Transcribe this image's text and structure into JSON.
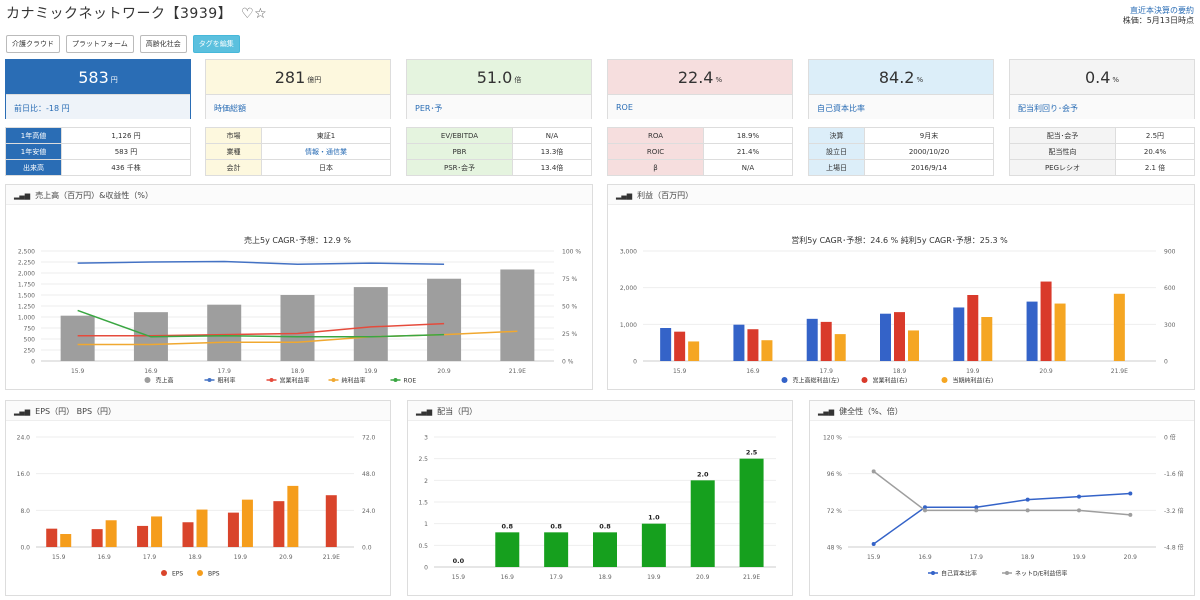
{
  "header": {
    "title": "カナミックネットワーク【3939】",
    "fav_icons": "♡☆",
    "latest_link": "直近本決算の要約",
    "price_time": "株価：5月13日時点"
  },
  "tags": [
    "介護クラウド",
    "プラットフォーム",
    "高齢化社会",
    "タグを編集"
  ],
  "cards": [
    {
      "value": "583",
      "unit": "円",
      "sub": "前日比：-18 円"
    },
    {
      "value": "281",
      "unit": "億円",
      "sub": "時価総額"
    },
    {
      "value": "51.0",
      "unit": "倍",
      "sub": "PER･予"
    },
    {
      "value": "22.4",
      "unit": "%",
      "sub": "ROE"
    },
    {
      "value": "84.2",
      "unit": "%",
      "sub": "自己資本比率"
    },
    {
      "value": "0.4",
      "unit": "%",
      "sub": "配当利回り･会予"
    }
  ],
  "tables": [
    [
      [
        "1年高値",
        "1,126 円"
      ],
      [
        "1年安値",
        "583 円"
      ],
      [
        "出来高",
        "436 千株"
      ]
    ],
    [
      [
        "市場",
        "東証1"
      ],
      [
        "業種",
        "情報・通信業"
      ],
      [
        "会計",
        "日本"
      ]
    ],
    [
      [
        "EV/EBITDA",
        "N/A"
      ],
      [
        "PBR",
        "13.3倍"
      ],
      [
        "PSR･会予",
        "13.4倍"
      ]
    ],
    [
      [
        "ROA",
        "18.9%"
      ],
      [
        "ROIC",
        "21.4%"
      ],
      [
        "β",
        "N/A"
      ]
    ],
    [
      [
        "決算",
        "9月末"
      ],
      [
        "設立日",
        "2000/10/20"
      ],
      [
        "上場日",
        "2016/9/14"
      ]
    ],
    [
      [
        "配当･会予",
        "2.5円"
      ],
      [
        "配当性向",
        "20.4%"
      ],
      [
        "PEGレシオ",
        "2.1 倍"
      ]
    ]
  ],
  "panels": {
    "p1": "売上高（百万円）&収益性（%）",
    "p2": "利益（百万円）",
    "p3": "EPS（円） BPS（円）",
    "p4": "配当（円）",
    "p5": "健全性（%、倍）"
  },
  "chart_data": [
    {
      "type": "bar",
      "title": "売上5y CAGR･予想：12.9 %",
      "categories": [
        "15.9",
        "16.9",
        "17.9",
        "18.9",
        "19.9",
        "20.9",
        "21.9E"
      ],
      "left_ticks": [
        "0",
        "250",
        "500",
        "750",
        "1,000",
        "1,250",
        "1,500",
        "1,750",
        "2,000",
        "2,250",
        "2,500"
      ],
      "right_ticks": [
        "0 %",
        "25 %",
        "50 %",
        "75 %",
        "100 %"
      ],
      "ylim": [
        0,
        2500
      ],
      "y2lim": [
        0,
        100
      ],
      "bars": {
        "name": "売上高",
        "values": [
          1030,
          1110,
          1280,
          1500,
          1680,
          1870,
          2080
        ]
      },
      "lines": [
        {
          "name": "粗利率",
          "values": [
            89,
            90,
            90.5,
            88,
            89,
            88
          ]
        },
        {
          "name": "営業利益率",
          "values": [
            23,
            23,
            24,
            25,
            31,
            34
          ]
        },
        {
          "name": "純利益率",
          "values": [
            15,
            15,
            17,
            17,
            22,
            24,
            27
          ]
        },
        {
          "name": "ROE",
          "values": [
            46,
            22,
            23,
            22,
            22,
            24
          ]
        }
      ],
      "legend_position": "bottom",
      "colors": {
        "bars": "#9e9e9e",
        "粗利率": "#4472c4",
        "営業利益率": "#e54b3c",
        "純利益率": "#f0a830",
        "ROE": "#3aa642"
      }
    },
    {
      "type": "bar",
      "title": "営利5y CAGR･予想：24.6 %  純利5y CAGR･予想：25.3 %",
      "categories": [
        "15.9",
        "16.9",
        "17.9",
        "18.9",
        "19.9",
        "20.9",
        "21.9E"
      ],
      "left_ticks": [
        "0",
        "1,000",
        "2,000",
        "3,000"
      ],
      "right_ticks": [
        "0",
        "300",
        "600",
        "900"
      ],
      "ylim": [
        0,
        3000
      ],
      "y2lim": [
        0,
        900
      ],
      "series": [
        {
          "name": "売上高総利益(左)",
          "axis": "left",
          "values": [
            900,
            990,
            1150,
            1290,
            1460,
            1620,
            null
          ]
        },
        {
          "name": "営業利益(右)",
          "axis": "right",
          "values": [
            240,
            260,
            320,
            400,
            540,
            650,
            null
          ]
        },
        {
          "name": "当期純利益(右)",
          "axis": "right",
          "values": [
            160,
            170,
            220,
            250,
            360,
            470,
            550
          ]
        }
      ],
      "legend_position": "bottom",
      "colors": {
        "売上高総利益(左)": "#3463c8",
        "営業利益(右)": "#d93a2b",
        "当期純利益(右)": "#f5a623"
      }
    },
    {
      "type": "bar",
      "title": "",
      "categories": [
        "15.9",
        "16.9",
        "17.9",
        "18.9",
        "19.9",
        "20.9",
        "21.9E"
      ],
      "left_ticks": [
        "0.0",
        "8.0",
        "16.0",
        "24.0"
      ],
      "right_ticks": [
        "0.0",
        "24.0",
        "48.0",
        "72.0"
      ],
      "ylim": [
        0,
        24
      ],
      "y2lim": [
        0,
        72
      ],
      "series": [
        {
          "name": "EPS",
          "axis": "left",
          "values": [
            4.0,
            3.9,
            4.6,
            5.4,
            7.5,
            10.0,
            11.3
          ]
        },
        {
          "name": "BPS",
          "axis": "right",
          "values": [
            8.5,
            17.5,
            20.0,
            24.5,
            31.0,
            40.0,
            null
          ]
        }
      ],
      "legend_position": "bottom",
      "colors": {
        "EPS": "#d9442b",
        "BPS": "#f59d1c"
      }
    },
    {
      "type": "bar",
      "title": "",
      "categories": [
        "15.9",
        "16.9",
        "17.9",
        "18.9",
        "19.9",
        "20.9",
        "21.9E"
      ],
      "left_ticks": [
        "0",
        "0.5",
        "1",
        "1.5",
        "2",
        "2.5",
        "3"
      ],
      "ylim": [
        0,
        3
      ],
      "values": [
        0.0,
        0.8,
        0.8,
        0.8,
        1.0,
        2.0,
        2.5
      ],
      "data_labels": [
        "0.0",
        "0.8",
        "0.8",
        "0.8",
        "1.0",
        "2.0",
        "2.5"
      ],
      "colors": {
        "bars": "#16a01e"
      }
    },
    {
      "type": "line",
      "title": "",
      "categories": [
        "15.9",
        "16.9",
        "17.9",
        "18.9",
        "19.9",
        "20.9"
      ],
      "left_ticks": [
        "48 %",
        "72 %",
        "96 %",
        "120 %"
      ],
      "right_ticks": [
        "-4.8 倍",
        "-3.2 倍",
        "-1.6 倍",
        "0 倍"
      ],
      "ylim": [
        48,
        120
      ],
      "y2lim": [
        -4.8,
        0
      ],
      "series": [
        {
          "name": "自己資本比率",
          "axis": "left",
          "values": [
            50,
            74,
            74,
            79,
            81,
            83
          ]
        },
        {
          "name": "ネットD/E利益倍率",
          "axis": "right",
          "values": [
            -1.5,
            -3.2,
            -3.2,
            -3.2,
            -3.2,
            -3.4
          ]
        }
      ],
      "legend_position": "bottom",
      "colors": {
        "自己資本比率": "#3463c8",
        "ネットD/E利益倍率": "#9e9e9e"
      }
    }
  ]
}
